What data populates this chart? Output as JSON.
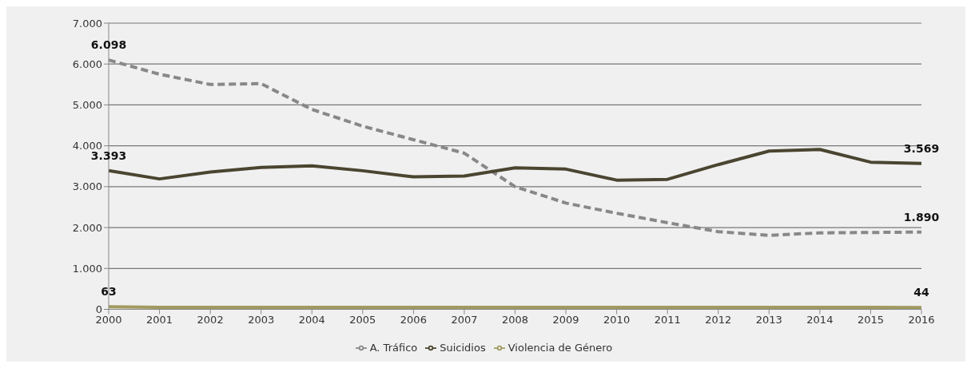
{
  "chart_data": {
    "type": "line",
    "categories": [
      "2000",
      "2001",
      "2002",
      "2003",
      "2004",
      "2005",
      "2006",
      "2007",
      "2008",
      "2009",
      "2010",
      "2011",
      "2012",
      "2013",
      "2014",
      "2015",
      "2016"
    ],
    "series": [
      {
        "name": "A. Tráfico",
        "color": "#888888",
        "line_style": "dashed",
        "values": [
          6098,
          5750,
          5500,
          5520,
          4890,
          4480,
          4150,
          3820,
          3000,
          2600,
          2350,
          2120,
          1900,
          1810,
          1870,
          1880,
          1890
        ],
        "value_labels": [
          "6.098",
          null,
          null,
          null,
          null,
          null,
          null,
          null,
          null,
          null,
          null,
          null,
          null,
          null,
          null,
          null,
          "1.890"
        ]
      },
      {
        "name": "Suicidios",
        "color": "#4a4530",
        "line_style": "solid",
        "values": [
          3393,
          3190,
          3360,
          3470,
          3510,
          3390,
          3240,
          3260,
          3460,
          3430,
          3160,
          3180,
          3540,
          3870,
          3910,
          3600,
          3569
        ],
        "value_labels": [
          "3.393",
          null,
          null,
          null,
          null,
          null,
          null,
          null,
          null,
          null,
          null,
          null,
          null,
          null,
          null,
          null,
          "3.569"
        ]
      },
      {
        "name": "Violencia de Género",
        "color": "#a09a60",
        "line_style": "solid",
        "values": [
          63,
          50,
          50,
          50,
          50,
          50,
          50,
          50,
          50,
          50,
          50,
          50,
          50,
          50,
          50,
          50,
          44
        ],
        "value_labels": [
          "63",
          null,
          null,
          null,
          null,
          null,
          null,
          null,
          null,
          null,
          null,
          null,
          null,
          null,
          null,
          null,
          "44"
        ]
      }
    ],
    "ylim": [
      0,
      7000
    ],
    "yticks": [
      {
        "value": 0,
        "label": "0"
      },
      {
        "value": 1000,
        "label": "1.000"
      },
      {
        "value": 2000,
        "label": "2.000"
      },
      {
        "value": 3000,
        "label": "3.000"
      },
      {
        "value": 4000,
        "label": "4.000"
      },
      {
        "value": 5000,
        "label": "5.000"
      },
      {
        "value": 6000,
        "label": "6.000"
      },
      {
        "value": 7000,
        "label": "7.000"
      }
    ],
    "grid": "y",
    "legend": "bottom",
    "marker": "none"
  }
}
